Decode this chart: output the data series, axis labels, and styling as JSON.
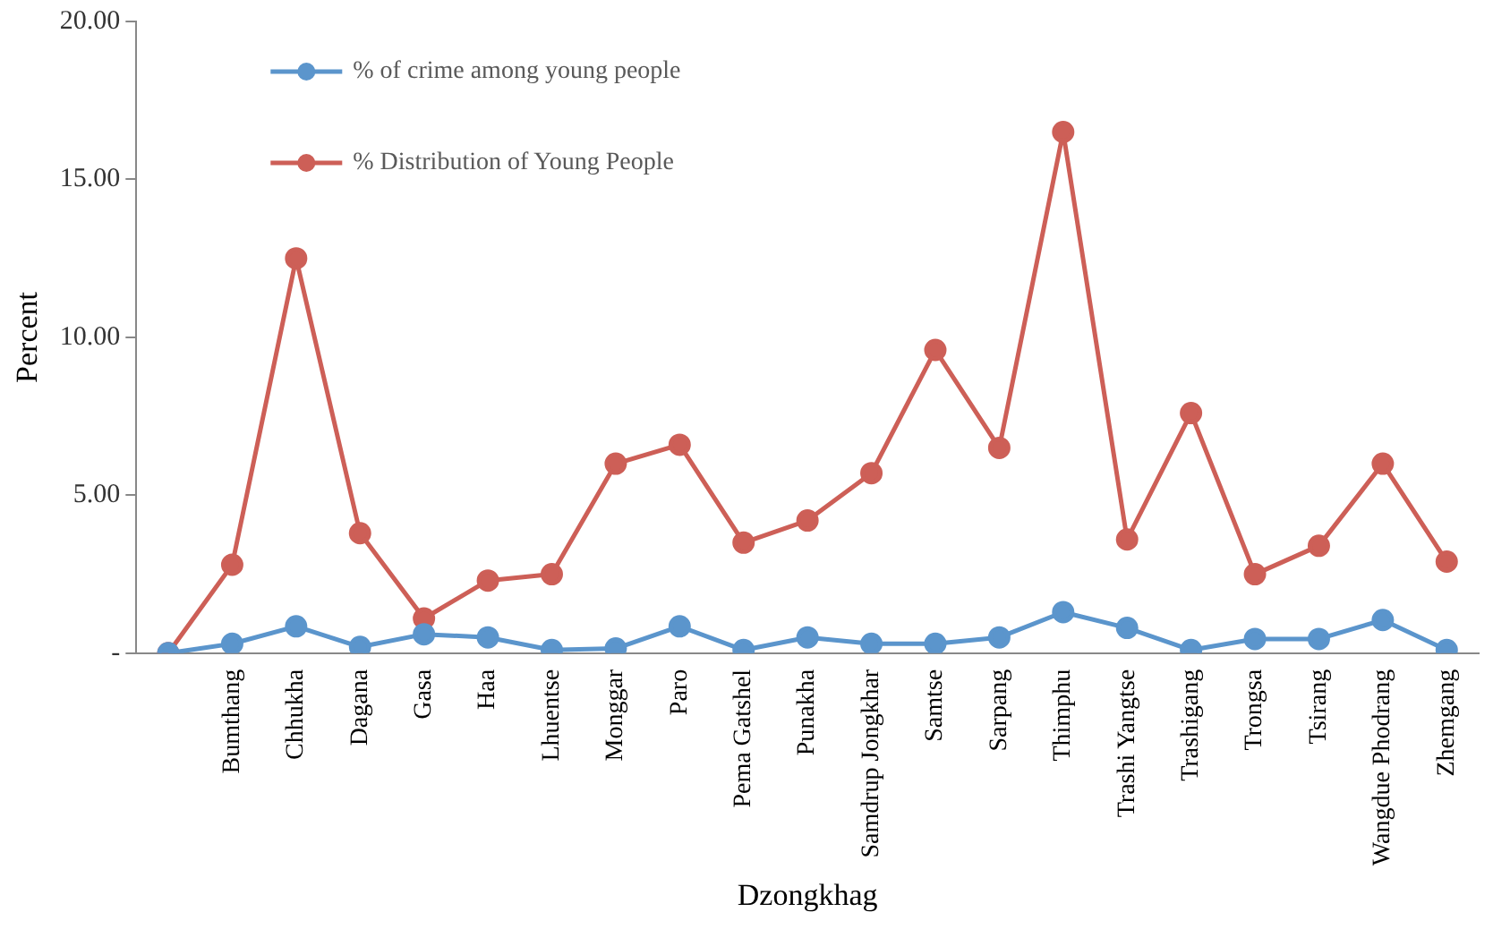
{
  "chart_data": {
    "type": "line",
    "xlabel": "Dzongkhag",
    "ylabel": "Percent",
    "categories": [
      null,
      "Bumthang",
      "Chhukha",
      "Dagana",
      "Gasa",
      "Haa",
      "Lhuentse",
      "Monggar",
      "Paro",
      "Pema Gatshel",
      "Punakha",
      "Samdrup Jongkhar",
      "Samtse",
      "Sarpang",
      "Thimphu",
      "Trashi Yangtse",
      "Trashigang",
      "Trongsa",
      "Tsirang",
      "Wangdue Phodrang",
      "Zhemgang"
    ],
    "series": [
      {
        "name": "% of crime among young people",
        "color": "#5b95cc",
        "values": [
          0,
          0.3,
          0.85,
          0.2,
          0.6,
          0.5,
          0.1,
          0.15,
          0.85,
          0.1,
          0.5,
          0.3,
          0.3,
          0.5,
          1.3,
          0.8,
          0.1,
          0.45,
          0.45,
          1.05,
          0.1
        ]
      },
      {
        "name": "% Distribution of Young People",
        "color": "#cd5f57",
        "values": [
          0,
          2.8,
          12.5,
          3.8,
          1.1,
          2.3,
          2.5,
          6.0,
          6.6,
          3.5,
          4.2,
          5.7,
          9.6,
          6.5,
          16.5,
          3.6,
          7.6,
          2.5,
          3.4,
          6.0,
          2.9
        ]
      }
    ],
    "ylim": [
      0,
      20
    ],
    "yticks": [
      {
        "value": 0,
        "label": "-"
      },
      {
        "value": 5,
        "label": "5.00"
      },
      {
        "value": 10,
        "label": "10.00"
      },
      {
        "value": 15,
        "label": "15.00"
      },
      {
        "value": 20,
        "label": "20.00"
      }
    ],
    "grid": false,
    "legend": "top left",
    "marker": "circle",
    "line_style": "solid"
  }
}
